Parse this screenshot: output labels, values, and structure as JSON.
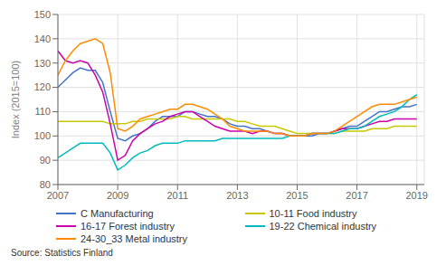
{
  "chart_data": {
    "type": "line",
    "ylabel": "Index (2015=100)",
    "annotations": [
      "Source: Statistics Finland"
    ],
    "xlim": [
      2007.0,
      2019.25
    ],
    "ylim": [
      80,
      150
    ],
    "yticks": [
      80,
      90,
      100,
      110,
      120,
      130,
      140,
      150
    ],
    "xticks": [
      2007,
      2009,
      2011,
      2013,
      2015,
      2017,
      2019
    ],
    "grid": true,
    "legend": "bottom",
    "x": [
      2007.0,
      2007.25,
      2007.5,
      2007.75,
      2008.0,
      2008.25,
      2008.5,
      2008.75,
      2009.0,
      2009.25,
      2009.5,
      2009.75,
      2010.0,
      2010.25,
      2010.5,
      2010.75,
      2011.0,
      2011.25,
      2011.5,
      2011.75,
      2012.0,
      2012.25,
      2012.5,
      2012.75,
      2013.0,
      2013.25,
      2013.5,
      2013.75,
      2014.0,
      2014.25,
      2014.5,
      2014.75,
      2015.0,
      2015.25,
      2015.5,
      2015.75,
      2016.0,
      2016.25,
      2016.5,
      2016.75,
      2017.0,
      2017.25,
      2017.5,
      2017.75,
      2018.0,
      2018.25,
      2018.5,
      2018.75,
      2019.0
    ],
    "series": [
      {
        "name": "C Manufacturing",
        "color": "#4472c4",
        "values": [
          120,
          123,
          126,
          128,
          127,
          127,
          122,
          110,
          99,
          98,
          100,
          101,
          103,
          106,
          108,
          108,
          108,
          110,
          110,
          109,
          108,
          108,
          107,
          105,
          104,
          104,
          103,
          103,
          102,
          101,
          101,
          100,
          100,
          100,
          100,
          101,
          101,
          102,
          103,
          104,
          104,
          106,
          108,
          110,
          110,
          111,
          112,
          112,
          113
        ]
      },
      {
        "name": "10-11 Food industry",
        "color": "#c8c800",
        "values": [
          106,
          106,
          106,
          106,
          106,
          106,
          106,
          105,
          105,
          105,
          106,
          106,
          107,
          107,
          107,
          107,
          108,
          108,
          107,
          107,
          107,
          107,
          107,
          107,
          106,
          106,
          105,
          104,
          104,
          104,
          103,
          102,
          101,
          101,
          101,
          101,
          101,
          101,
          102,
          102,
          102,
          102,
          103,
          103,
          103,
          104,
          104,
          104,
          104
        ]
      },
      {
        "name": "16-17 Forest industry",
        "color": "#cc00aa",
        "values": [
          135,
          131,
          130,
          131,
          130,
          125,
          118,
          105,
          90,
          92,
          98,
          101,
          103,
          105,
          106,
          108,
          109,
          110,
          110,
          108,
          106,
          104,
          103,
          102,
          102,
          102,
          101,
          102,
          102,
          101,
          101,
          100,
          100,
          100,
          101,
          101,
          101,
          102,
          103,
          103,
          103,
          104,
          105,
          106,
          106,
          107,
          107,
          107,
          107
        ]
      },
      {
        "name": "19-22 Chemical industry",
        "color": "#00bbbb",
        "values": [
          91,
          93,
          95,
          97,
          97,
          97,
          97,
          93,
          86,
          88,
          91,
          93,
          94,
          96,
          97,
          97,
          97,
          98,
          98,
          98,
          98,
          98,
          99,
          99,
          99,
          99,
          99,
          99,
          99,
          99,
          99,
          100,
          100,
          100,
          101,
          101,
          101,
          101,
          102,
          103,
          103,
          104,
          106,
          108,
          109,
          110,
          112,
          115,
          117
        ]
      },
      {
        "name": "24-30_33 Metal industry",
        "color": "#ff8c00",
        "values": [
          125,
          131,
          135,
          138,
          139,
          140,
          138,
          126,
          103,
          102,
          104,
          107,
          108,
          109,
          110,
          111,
          111,
          113,
          113,
          112,
          111,
          109,
          107,
          104,
          103,
          102,
          102,
          102,
          102,
          101,
          101,
          100,
          100,
          100,
          101,
          101,
          101,
          102,
          104,
          106,
          108,
          110,
          112,
          113,
          113,
          113,
          114,
          115,
          116
        ]
      }
    ]
  }
}
